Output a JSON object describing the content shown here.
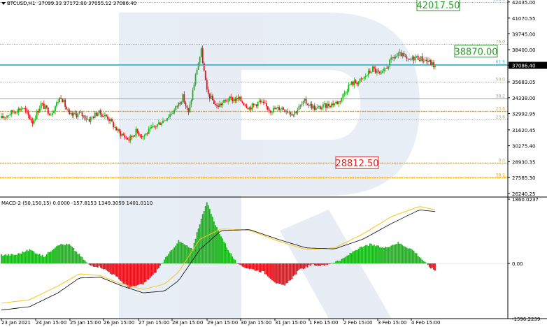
{
  "header": {
    "symbol": "BTCUSD,H1",
    "ohlc": "37099.33 37172.80 37055.12 37086.40"
  },
  "macd": {
    "label": "MACD-2 (50,150,15) 0.0000 -157.8153 1349.3059 1401.0110",
    "ticks": [
      "1860.0237",
      "0.00",
      "-1596.2239"
    ]
  },
  "colors": {
    "bull": "#19b619",
    "bear": "#e5121b",
    "fib_blue": "#53b8d3",
    "fib_olive": "#a2b23f",
    "fib_orange": "#f7a600",
    "target_green": "#239f23",
    "target_red": "#e52323",
    "macd_signal_gold": "#f6c71b",
    "macd_line": "#000000",
    "watermark": "#d8e2ef"
  },
  "chart_data": [
    {
      "type": "candlestick",
      "title": "BTCUSD,H1",
      "ylim": [
        26000,
        42600
      ],
      "y_ticks": [
        "42435.00",
        "41070.55",
        "39745.00",
        "38400.00",
        "37086.40",
        "35683.05",
        "34338.00",
        "32992.95",
        "31620.45",
        "30275.40",
        "28930.35",
        "27585.30",
        "26240.25"
      ],
      "x_ticks": [
        "23 Jan 2021",
        "24 Jan 15:00",
        "25 Jan 15:00",
        "26 Jan 15:00",
        "27 Jan 15:00",
        "28 Jan 15:00",
        "29 Jan 15:00",
        "30 Jan 15:00",
        "31 Jan 15:00",
        "1 Feb 15:00",
        "2 Feb 15:00",
        "3 Feb 15:00",
        "4 Feb 15:00"
      ],
      "current_price": 37086.4,
      "fib_levels": [
        {
          "label": "100.0",
          "price": 42435,
          "color": "fib_blue",
          "dashed": true
        },
        {
          "label": "76.0",
          "price": 38850,
          "color": "fib_olive",
          "dashed": true
        },
        {
          "label": "61.8",
          "price": 37150,
          "color": "fib_blue",
          "dashed": false
        },
        {
          "label": "50.0",
          "price": 35700,
          "color": "fib_olive",
          "dashed": true
        },
        {
          "label": "38.2",
          "price": 34250,
          "color": "fib_blue",
          "dashed": false
        },
        {
          "label": "23.6",
          "price": 33220,
          "color": "fib_orange",
          "dashed": true
        },
        {
          "label": "23.6",
          "price": 32480,
          "color": "fib_olive",
          "dashed": true
        },
        {
          "label": "0.0",
          "price": 28850,
          "color": "fib_orange",
          "dashed": true
        },
        {
          "label": "38.2",
          "price": 27620,
          "color": "fib_orange",
          "dashed": true
        }
      ],
      "targets": [
        {
          "label": "42017.50",
          "price": 42180,
          "color": "target_green"
        },
        {
          "label": "38870.00",
          "price": 38270,
          "color": "target_green"
        },
        {
          "label": "28812.50",
          "price": 28850,
          "color": "target_red"
        }
      ],
      "anchors": [
        [
          0,
          32600
        ],
        [
          8,
          33150
        ],
        [
          15,
          33500
        ],
        [
          22,
          32300
        ],
        [
          28,
          33800
        ],
        [
          35,
          33000
        ],
        [
          42,
          34500
        ],
        [
          48,
          32800
        ],
        [
          55,
          33000
        ],
        [
          62,
          32500
        ],
        [
          68,
          33100
        ],
        [
          75,
          32700
        ],
        [
          82,
          31500
        ],
        [
          90,
          30800
        ],
        [
          95,
          31500
        ],
        [
          100,
          31100
        ],
        [
          108,
          31900
        ],
        [
          115,
          32500
        ],
        [
          122,
          33300
        ],
        [
          128,
          34400
        ],
        [
          132,
          33000
        ],
        [
          138,
          36800
        ],
        [
          141,
          38300
        ],
        [
          145,
          34800
        ],
        [
          152,
          33600
        ],
        [
          160,
          34200
        ],
        [
          168,
          34200
        ],
        [
          175,
          33500
        ],
        [
          182,
          34000
        ],
        [
          190,
          33300
        ],
        [
          198,
          33500
        ],
        [
          206,
          33000
        ],
        [
          214,
          34000
        ],
        [
          222,
          33400
        ],
        [
          230,
          33700
        ],
        [
          238,
          34000
        ],
        [
          246,
          35500
        ],
        [
          254,
          35800
        ],
        [
          262,
          36800
        ],
        [
          268,
          36200
        ],
        [
          276,
          37700
        ],
        [
          282,
          38000
        ],
        [
          287,
          37400
        ],
        [
          292,
          37800
        ],
        [
          300,
          37500
        ],
        [
          306,
          37000
        ]
      ]
    },
    {
      "type": "macd",
      "title": "MACD-2 (50,150,15)",
      "ylim": [
        -1596.2239,
        1860.0237
      ],
      "histogram_anchors": [
        [
          0,
          250
        ],
        [
          10,
          250
        ],
        [
          20,
          400
        ],
        [
          30,
          200
        ],
        [
          40,
          550
        ],
        [
          48,
          550
        ],
        [
          55,
          250
        ],
        [
          62,
          -50
        ],
        [
          70,
          -100
        ],
        [
          80,
          -350
        ],
        [
          90,
          -700
        ],
        [
          100,
          -600
        ],
        [
          108,
          -300
        ],
        [
          115,
          100
        ],
        [
          125,
          650
        ],
        [
          135,
          400
        ],
        [
          138,
          900
        ],
        [
          145,
          1800
        ],
        [
          150,
          1200
        ],
        [
          160,
          400
        ],
        [
          167,
          -50
        ],
        [
          175,
          -150
        ],
        [
          185,
          -250
        ],
        [
          195,
          -600
        ],
        [
          200,
          -650
        ],
        [
          210,
          -200
        ],
        [
          218,
          -50
        ],
        [
          228,
          -60
        ],
        [
          235,
          50
        ],
        [
          240,
          100
        ],
        [
          250,
          400
        ],
        [
          260,
          550
        ],
        [
          270,
          450
        ],
        [
          280,
          600
        ],
        [
          290,
          400
        ],
        [
          295,
          200
        ],
        [
          302,
          -100
        ],
        [
          306,
          -200
        ]
      ],
      "signal_anchors": [
        [
          0,
          -1150
        ],
        [
          20,
          -1050
        ],
        [
          40,
          -650
        ],
        [
          55,
          -300
        ],
        [
          70,
          -350
        ],
        [
          85,
          -600
        ],
        [
          100,
          -750
        ],
        [
          115,
          -600
        ],
        [
          125,
          -250
        ],
        [
          140,
          700
        ],
        [
          155,
          1000
        ],
        [
          175,
          960
        ],
        [
          195,
          650
        ],
        [
          215,
          400
        ],
        [
          235,
          450
        ],
        [
          255,
          850
        ],
        [
          275,
          1350
        ],
        [
          295,
          1650
        ],
        [
          306,
          1550
        ]
      ],
      "line_anchors": [
        [
          0,
          -1350
        ],
        [
          20,
          -1250
        ],
        [
          40,
          -850
        ],
        [
          55,
          -420
        ],
        [
          70,
          -400
        ],
        [
          85,
          -650
        ],
        [
          100,
          -850
        ],
        [
          115,
          -800
        ],
        [
          125,
          -500
        ],
        [
          140,
          400
        ],
        [
          155,
          950
        ],
        [
          175,
          980
        ],
        [
          195,
          700
        ],
        [
          215,
          450
        ],
        [
          235,
          420
        ],
        [
          255,
          700
        ],
        [
          275,
          1150
        ],
        [
          295,
          1550
        ],
        [
          306,
          1500
        ]
      ]
    }
  ]
}
